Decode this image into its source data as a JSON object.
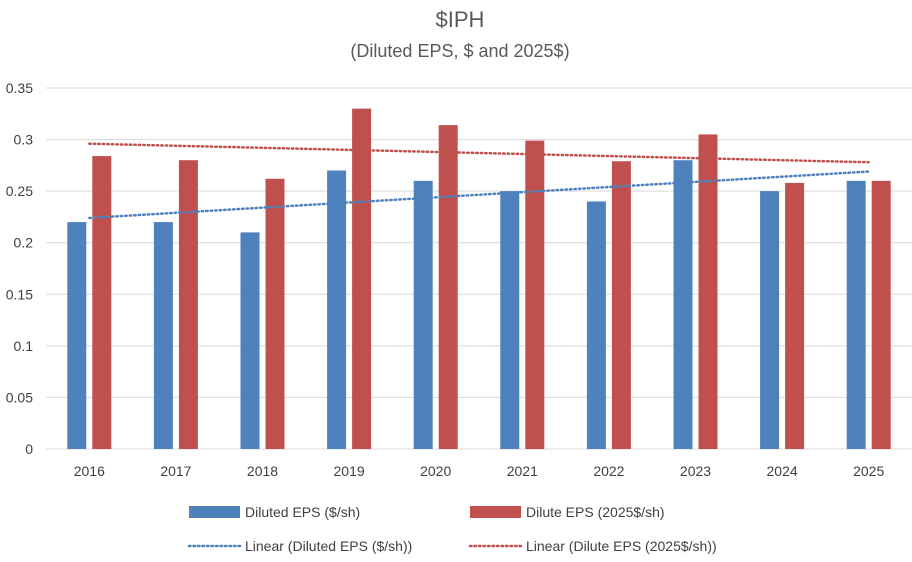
{
  "chart_data": {
    "type": "bar",
    "title": "$IPH",
    "subtitle": "(Diluted EPS, $ and 2025$)",
    "categories": [
      "2016",
      "2017",
      "2018",
      "2019",
      "2020",
      "2021",
      "2022",
      "2023",
      "2024",
      "2025"
    ],
    "series": [
      {
        "name": "Diluted EPS ($/sh)",
        "color": "#4f81bd",
        "values": [
          0.22,
          0.22,
          0.21,
          0.27,
          0.26,
          0.25,
          0.24,
          0.28,
          0.25,
          0.26
        ]
      },
      {
        "name": "Dilute EPS (2025$/sh)",
        "color": "#c0504d",
        "values": [
          0.284,
          0.28,
          0.262,
          0.33,
          0.314,
          0.299,
          0.279,
          0.305,
          0.258,
          0.26
        ]
      }
    ],
    "trendlines": [
      {
        "name": "Linear (Diluted EPS ($/sh))",
        "color": "#4f81bd",
        "start": 0.224,
        "end": 0.269
      },
      {
        "name": "Linear (Dilute EPS (2025$/sh))",
        "color": "#c0504d",
        "start": 0.296,
        "end": 0.278
      }
    ],
    "ylim": [
      0,
      0.35
    ],
    "yticks": [
      "0",
      "0.05",
      "0.1",
      "0.15",
      "0.2",
      "0.25",
      "0.3",
      "0.35"
    ],
    "xlabel": "",
    "ylabel": "",
    "grid": true,
    "legend_position": "bottom"
  }
}
